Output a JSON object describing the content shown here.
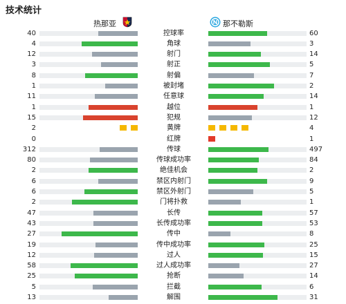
{
  "header": {
    "title": "技术统计"
  },
  "teams": {
    "home": {
      "name": "热那亚",
      "logo_icon": "genoa-crest-icon"
    },
    "away": {
      "name": "那不勒斯",
      "logo_icon": "napoli-crest-icon"
    }
  },
  "colors": {
    "winner": "#3db84b",
    "loser": "#9aa4ae",
    "track": "#eceef0",
    "alert": "#d9432e",
    "yellow_card": "#f5b800",
    "red_card": "#e23a2a"
  },
  "stats": [
    {
      "label": "控球率",
      "home": "40",
      "away": "60",
      "hv": 40,
      "av": 60,
      "kind": "normal"
    },
    {
      "label": "角球",
      "home": "4",
      "away": "3",
      "hv": 4,
      "av": 3,
      "kind": "normal"
    },
    {
      "label": "射门",
      "home": "12",
      "away": "14",
      "hv": 12,
      "av": 14,
      "kind": "normal"
    },
    {
      "label": "射正",
      "home": "3",
      "away": "5",
      "hv": 3,
      "av": 5,
      "kind": "normal"
    },
    {
      "label": "射偏",
      "home": "8",
      "away": "7",
      "hv": 8,
      "av": 7,
      "kind": "normal"
    },
    {
      "label": "被封堵",
      "home": "1",
      "away": "2",
      "hv": 1,
      "av": 2,
      "kind": "normal"
    },
    {
      "label": "任意球",
      "home": "11",
      "away": "14",
      "hv": 11,
      "av": 14,
      "kind": "normal"
    },
    {
      "label": "越位",
      "home": "1",
      "away": "1",
      "hv": 1,
      "av": 1,
      "kind": "alert"
    },
    {
      "label": "犯规",
      "home": "15",
      "away": "12",
      "hv": 15,
      "av": 12,
      "kind": "foul"
    },
    {
      "label": "黄牌",
      "home": "2",
      "away": "4",
      "hv": 2,
      "av": 4,
      "kind": "yellow"
    },
    {
      "label": "红牌",
      "home": "0",
      "away": "1",
      "hv": 0,
      "av": 1,
      "kind": "red"
    },
    {
      "label": "传球",
      "home": "312",
      "away": "497",
      "hv": 312,
      "av": 497,
      "kind": "normal"
    },
    {
      "label": "传球成功率",
      "home": "80",
      "away": "84",
      "hv": 80,
      "av": 84,
      "kind": "normal"
    },
    {
      "label": "绝佳机会",
      "home": "2",
      "away": "2",
      "hv": 2,
      "av": 2,
      "kind": "equal"
    },
    {
      "label": "禁区内射门",
      "home": "6",
      "away": "9",
      "hv": 6,
      "av": 9,
      "kind": "normal"
    },
    {
      "label": "禁区外射门",
      "home": "6",
      "away": "5",
      "hv": 6,
      "av": 5,
      "kind": "normal"
    },
    {
      "label": "门将扑救",
      "home": "2",
      "away": "1",
      "hv": 2,
      "av": 1,
      "kind": "normal"
    },
    {
      "label": "长传",
      "home": "47",
      "away": "57",
      "hv": 47,
      "av": 57,
      "kind": "normal"
    },
    {
      "label": "长传成功率",
      "home": "43",
      "away": "53",
      "hv": 43,
      "av": 53,
      "kind": "normal"
    },
    {
      "label": "传中",
      "home": "27",
      "away": "8",
      "hv": 27,
      "av": 8,
      "kind": "normal"
    },
    {
      "label": "传中成功率",
      "home": "19",
      "away": "25",
      "hv": 19,
      "av": 25,
      "kind": "normal"
    },
    {
      "label": "过人",
      "home": "12",
      "away": "15",
      "hv": 12,
      "av": 15,
      "kind": "normal"
    },
    {
      "label": "过人成功率",
      "home": "58",
      "away": "27",
      "hv": 58,
      "av": 27,
      "kind": "normal"
    },
    {
      "label": "抢断",
      "home": "25",
      "away": "14",
      "hv": 25,
      "av": 14,
      "kind": "normal"
    },
    {
      "label": "拦截",
      "home": "5",
      "away": "6",
      "hv": 5,
      "av": 6,
      "kind": "normal"
    },
    {
      "label": "解围",
      "home": "13",
      "away": "31",
      "hv": 13,
      "av": 31,
      "kind": "normal"
    }
  ]
}
